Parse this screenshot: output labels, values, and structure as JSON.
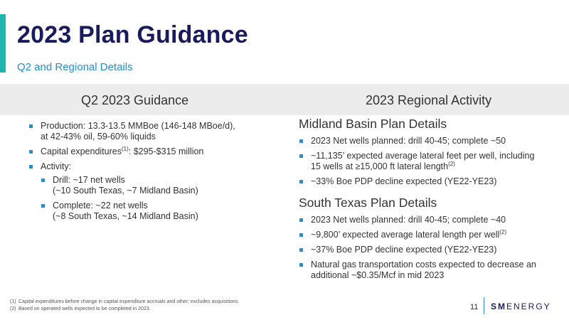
{
  "slide": {
    "title": "2023 Plan Guidance",
    "subtitle": "Q2 and Regional Details",
    "page_number": "11"
  },
  "left": {
    "heading": "Q2 2023 Guidance",
    "production_line1": "Production: 13.3-13.5 MMBoe (146-148 MBoe/d),",
    "production_line2": "at 42-43% oil, 59-60% liquids",
    "capex_label": "Capital expenditures",
    "capex_ref": "(1)",
    "capex_value": ": $295-$315 million",
    "activity": "Activity:",
    "drill_line1": "Drill: ~17 net wells",
    "drill_line2": "(~10 South Texas, ~7 Midland Basin)",
    "complete_line1": "Complete: ~22 net wells",
    "complete_line2": "(~8 South Texas, ~14 Midland Basin)"
  },
  "right": {
    "heading": "2023 Regional Activity",
    "midland": {
      "title": "Midland Basin Plan Details",
      "b1": "2023 Net wells planned: drill 40-45; complete ~50",
      "b2_line1": "~11,135’ expected average lateral feet per well, including",
      "b2_line2": "15 wells at ≥15,000 ft lateral length",
      "b2_ref": "(2)",
      "b3": "~33% Boe PDP decline expected (YE22-YE23)"
    },
    "south_texas": {
      "title": "South Texas Plan Details",
      "b1": "2023 Net wells planned: drill 40-45; complete ~40",
      "b2": "~9,800’ expected average lateral length per well",
      "b2_ref": "(2)",
      "b3": "~37% Boe PDP decline expected (YE22-YE23)",
      "b4_line1": "Natural gas transportation costs expected to decrease an",
      "b4_line2": "additional ~$0.35/Mcf in mid 2023"
    }
  },
  "footnotes": {
    "n1": "(1)",
    "t1": "Capital expenditures before change in capital expenditure accruals and other; excludes acquisitions.",
    "n2": "(2)",
    "t2": "Based on operated wells expected to be completed in 2023."
  },
  "logo": {
    "bold": "SM",
    "rest": "ENERGY"
  },
  "colors": {
    "title": "#1a1a5e",
    "accent_teal": "#1fb6ad",
    "accent_blue": "#1f8fd6",
    "band": "#ececec"
  }
}
